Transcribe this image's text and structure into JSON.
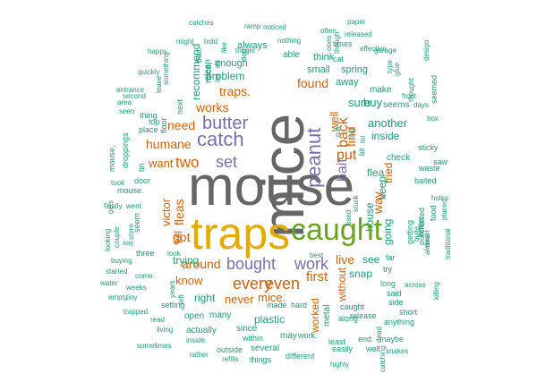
{
  "colors": {
    "gray": "#666666",
    "yellow": "#E6AB02",
    "green": "#66A61E",
    "purple": "#7570B3",
    "orange": "#D95F02",
    "teal": "#1B9E77"
  },
  "words": [
    {
      "text": "mouse",
      "color": "gray"
    },
    {
      "text": "mice",
      "color": "gray"
    },
    {
      "text": "traps",
      "color": "yellow"
    },
    {
      "text": "caught",
      "color": "green"
    },
    {
      "text": "catch",
      "color": "purple"
    },
    {
      "text": "butter",
      "color": "purple"
    },
    {
      "text": "peanut",
      "color": "purple"
    },
    {
      "text": "bait",
      "color": "purple"
    },
    {
      "text": "bought",
      "color": "purple"
    },
    {
      "text": "work",
      "color": "purple"
    },
    {
      "text": "set",
      "color": "purple"
    },
    {
      "text": "every",
      "color": "orange"
    },
    {
      "text": "even",
      "color": "orange"
    },
    {
      "text": "two",
      "color": "orange"
    },
    {
      "text": "put",
      "color": "orange"
    },
    {
      "text": "back",
      "color": "orange"
    },
    {
      "text": "traps.",
      "color": "orange"
    },
    {
      "text": "works",
      "color": "orange"
    },
    {
      "text": "humane",
      "color": "orange"
    },
    {
      "text": "need",
      "color": "orange"
    },
    {
      "text": "first",
      "color": "orange"
    },
    {
      "text": "live",
      "color": "orange"
    },
    {
      "text": "got",
      "color": "orange"
    },
    {
      "text": "fleas",
      "color": "orange"
    },
    {
      "text": "way",
      "color": "orange"
    },
    {
      "text": "found",
      "color": "orange"
    },
    {
      "text": "find",
      "color": "orange"
    },
    {
      "text": "around",
      "color": "orange"
    },
    {
      "text": "mice.",
      "color": "orange"
    },
    {
      "text": "never",
      "color": "orange"
    },
    {
      "text": "worked",
      "color": "orange"
    },
    {
      "text": "without",
      "color": "orange"
    },
    {
      "text": "victor",
      "color": "orange"
    },
    {
      "text": "tried",
      "color": "orange"
    },
    {
      "text": "kill",
      "color": "orange"
    },
    {
      "text": "want",
      "color": "orange"
    },
    {
      "text": "know",
      "color": "orange"
    },
    {
      "text": "well",
      "color": "orange"
    },
    {
      "text": "flea",
      "color": "teal"
    },
    {
      "text": "sure",
      "color": "teal"
    },
    {
      "text": "buy",
      "color": "teal"
    },
    {
      "text": "another",
      "color": "teal"
    },
    {
      "text": "inside",
      "color": "teal"
    },
    {
      "text": "house",
      "color": "teal"
    },
    {
      "text": "going",
      "color": "teal"
    },
    {
      "text": "keep",
      "color": "teal"
    },
    {
      "text": "see",
      "color": "teal"
    },
    {
      "text": "snap",
      "color": "teal"
    },
    {
      "text": "plastic",
      "color": "teal"
    },
    {
      "text": "right",
      "color": "teal"
    },
    {
      "text": "trying",
      "color": "teal"
    },
    {
      "text": "recommend",
      "color": "teal"
    },
    {
      "text": "problem",
      "color": "teal"
    },
    {
      "text": "enough",
      "color": "teal"
    },
    {
      "text": "always",
      "color": "teal"
    },
    {
      "text": "small",
      "color": "teal"
    },
    {
      "text": "think",
      "color": "teal"
    },
    {
      "text": "spring",
      "color": "teal"
    },
    {
      "text": "away",
      "color": "teal"
    },
    {
      "text": "make",
      "color": "teal"
    },
    {
      "text": "seems",
      "color": "teal"
    },
    {
      "text": "check",
      "color": "teal"
    },
    {
      "text": "baited",
      "color": "teal"
    },
    {
      "text": "sticky",
      "color": "teal"
    },
    {
      "text": "waste",
      "color": "teal"
    },
    {
      "text": "saw",
      "color": "teal"
    },
    {
      "text": "getting",
      "color": "teal"
    },
    {
      "text": "better",
      "color": "teal"
    },
    {
      "text": "food",
      "color": "teal"
    },
    {
      "text": "purchased",
      "color": "teal"
    },
    {
      "text": "far",
      "color": "teal"
    },
    {
      "text": "try",
      "color": "teal"
    },
    {
      "text": "long",
      "color": "teal"
    },
    {
      "text": "said",
      "color": "teal"
    },
    {
      "text": "side",
      "color": "teal"
    },
    {
      "text": "short",
      "color": "teal"
    },
    {
      "text": "anything",
      "color": "teal"
    },
    {
      "text": "caught",
      "color": "teal"
    },
    {
      "text": "along",
      "color": "teal"
    },
    {
      "text": "metal",
      "color": "teal"
    },
    {
      "text": "release",
      "color": "teal"
    },
    {
      "text": "end",
      "color": "teal"
    },
    {
      "text": "maybe",
      "color": "teal"
    },
    {
      "text": "well.",
      "color": "teal"
    },
    {
      "text": "easily",
      "color": "teal"
    },
    {
      "text": "least",
      "color": "teal"
    },
    {
      "text": "highly",
      "color": "teal"
    },
    {
      "text": "snakes",
      "color": "teal"
    },
    {
      "text": "catching",
      "color": "teal"
    },
    {
      "text": "dead",
      "color": "teal"
    },
    {
      "text": "different",
      "color": "teal"
    },
    {
      "text": "several",
      "color": "teal"
    },
    {
      "text": "things",
      "color": "teal"
    },
    {
      "text": "refills",
      "color": "teal"
    },
    {
      "text": "outside",
      "color": "teal"
    },
    {
      "text": "rather",
      "color": "teal"
    },
    {
      "text": "inside.",
      "color": "teal"
    },
    {
      "text": "sometimes",
      "color": "teal"
    },
    {
      "text": "living",
      "color": "teal"
    },
    {
      "text": "read",
      "color": "teal"
    },
    {
      "text": "trapped",
      "color": "teal"
    },
    {
      "text": "empty",
      "color": "teal"
    },
    {
      "text": "tiny",
      "color": "teal"
    },
    {
      "text": "water",
      "color": "teal"
    },
    {
      "text": "weeks",
      "color": "teal"
    },
    {
      "text": "started",
      "color": "teal"
    },
    {
      "text": "buying",
      "color": "teal"
    },
    {
      "text": "come",
      "color": "teal"
    },
    {
      "text": "setting",
      "color": "teal"
    },
    {
      "text": "left",
      "color": "teal"
    },
    {
      "text": "years",
      "color": "teal"
    },
    {
      "text": "look",
      "color": "teal"
    },
    {
      "text": "three",
      "color": "teal"
    },
    {
      "text": "couple",
      "color": "teal"
    },
    {
      "text": "say",
      "color": "teal"
    },
    {
      "text": "looking",
      "color": "teal"
    },
    {
      "text": "store",
      "color": "teal"
    },
    {
      "text": "finally",
      "color": "teal"
    },
    {
      "text": "went",
      "color": "teal"
    },
    {
      "text": "seem",
      "color": "teal"
    },
    {
      "text": "gets",
      "color": "teal"
    },
    {
      "text": "took",
      "color": "teal"
    },
    {
      "text": "door",
      "color": "teal"
    },
    {
      "text": "mouse.",
      "color": "teal"
    },
    {
      "text": "tin",
      "color": "teal"
    },
    {
      "text": "droppings",
      "color": "teal"
    },
    {
      "text": "mouse,",
      "color": "teal"
    },
    {
      "text": "place",
      "color": "teal"
    },
    {
      "text": "thing",
      "color": "teal"
    },
    {
      "text": "top",
      "color": "teal"
    },
    {
      "text": "floor",
      "color": "teal"
    },
    {
      "text": "area",
      "color": "teal"
    },
    {
      "text": "seen",
      "color": "teal"
    },
    {
      "text": "second",
      "color": "teal"
    },
    {
      "text": "entrance",
      "color": "teal"
    },
    {
      "text": "quickly",
      "color": "teal"
    },
    {
      "text": "leave",
      "color": "teal"
    },
    {
      "text": "happy",
      "color": "teal"
    },
    {
      "text": "something",
      "color": "teal"
    },
    {
      "text": "next",
      "color": "teal"
    },
    {
      "text": "might",
      "color": "teal"
    },
    {
      "text": "hold",
      "color": "teal"
    },
    {
      "text": "catches",
      "color": "teal"
    },
    {
      "text": "bait.",
      "color": "teal"
    },
    {
      "text": "rid",
      "color": "teal"
    },
    {
      "text": "clean",
      "color": "teal"
    },
    {
      "text": "mice,",
      "color": "teal"
    },
    {
      "text": "let",
      "color": "teal"
    },
    {
      "text": "like",
      "color": "teal"
    },
    {
      "text": "trigger",
      "color": "teal"
    },
    {
      "text": "dog",
      "color": "teal"
    },
    {
      "text": "ramp",
      "color": "teal"
    },
    {
      "text": "noticed",
      "color": "teal"
    },
    {
      "text": "nothing",
      "color": "teal"
    },
    {
      "text": "able",
      "color": "teal"
    },
    {
      "text": "though",
      "color": "teal"
    },
    {
      "text": "ones",
      "color": "teal"
    },
    {
      "text": "often",
      "color": "teal"
    },
    {
      "text": "paper",
      "color": "teal"
    },
    {
      "text": "released",
      "color": "teal"
    },
    {
      "text": "times",
      "color": "teal"
    },
    {
      "text": "effective",
      "color": "teal"
    },
    {
      "text": "cat",
      "color": "teal"
    },
    {
      "text": "garage",
      "color": "teal"
    },
    {
      "text": "type",
      "color": "teal"
    },
    {
      "text": "glue",
      "color": "teal"
    },
    {
      "text": "design",
      "color": "teal"
    },
    {
      "text": "thought",
      "color": "teal"
    },
    {
      "text": "seemed",
      "color": "teal"
    },
    {
      "text": "front",
      "color": "teal"
    },
    {
      "text": "days",
      "color": "teal"
    },
    {
      "text": "box",
      "color": "teal"
    },
    {
      "text": "holes",
      "color": "teal"
    },
    {
      "text": "placed",
      "color": "teal"
    },
    {
      "text": "smart",
      "color": "teal"
    },
    {
      "text": "quite",
      "color": "teal"
    },
    {
      "text": "traditional",
      "color": "teal"
    },
    {
      "text": "almost",
      "color": "teal"
    },
    {
      "text": "across",
      "color": "teal"
    },
    {
      "text": "killing",
      "color": "teal"
    },
    {
      "text": "best",
      "color": "teal"
    },
    {
      "text": "used",
      "color": "teal"
    },
    {
      "text": "stuck",
      "color": "teal"
    },
    {
      "text": "run",
      "color": "teal"
    },
    {
      "text": "eat",
      "color": "teal"
    },
    {
      "text": "lot",
      "color": "teal"
    },
    {
      "text": "bit",
      "color": "teal"
    },
    {
      "text": "hard",
      "color": "teal"
    },
    {
      "text": "made",
      "color": "teal"
    },
    {
      "text": "may",
      "color": "teal"
    },
    {
      "text": "work.",
      "color": "teal"
    },
    {
      "text": "within",
      "color": "teal"
    },
    {
      "text": "since",
      "color": "teal"
    },
    {
      "text": "many",
      "color": "teal"
    },
    {
      "text": "open",
      "color": "teal"
    },
    {
      "text": "actually",
      "color": "teal"
    }
  ]
}
